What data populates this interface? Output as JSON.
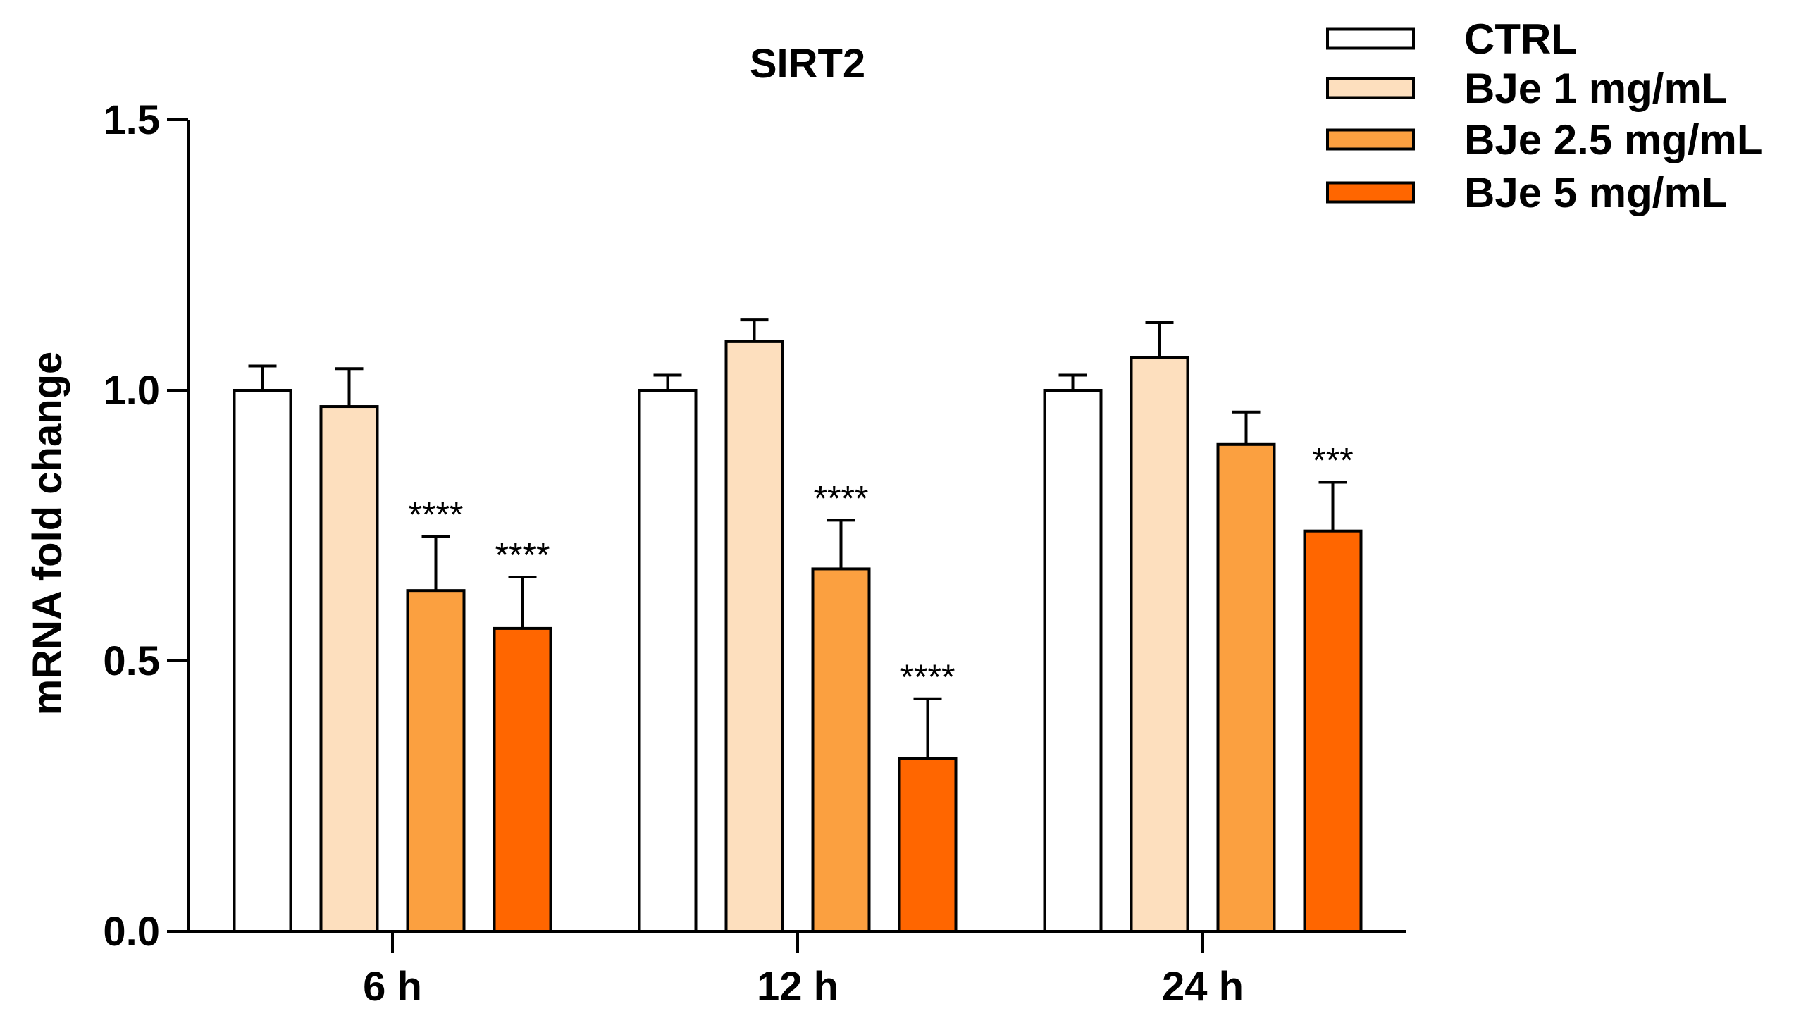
{
  "chart_data": {
    "type": "bar",
    "title": "SIRT2",
    "xlabel": "",
    "ylabel": "mRNA fold change",
    "ylim": [
      0,
      1.5
    ],
    "yticks": [
      0.0,
      0.5,
      1.0,
      1.5
    ],
    "ytick_labels": [
      "0.0",
      "0.5",
      "1.0",
      "1.5"
    ],
    "categories": [
      "6 h",
      "12 h",
      "24 h"
    ],
    "legend_position": "top-right",
    "series": [
      {
        "name": "CTRL",
        "color": "#FFFFFF",
        "values": [
          1.0,
          1.0,
          1.0
        ],
        "errors": [
          0.045,
          0.028,
          0.028
        ],
        "significance": [
          "",
          "",
          ""
        ]
      },
      {
        "name": "BJe 1 mg/mL",
        "color": "#FDDFBE",
        "values": [
          0.97,
          1.09,
          1.06
        ],
        "errors": [
          0.07,
          0.04,
          0.065
        ],
        "significance": [
          "",
          "",
          ""
        ]
      },
      {
        "name": "BJe 2.5 mg/mL",
        "color": "#FBA040",
        "values": [
          0.63,
          0.67,
          0.9
        ],
        "errors": [
          0.1,
          0.09,
          0.06
        ],
        "significance": [
          "****",
          "****",
          ""
        ]
      },
      {
        "name": "BJe 5 mg/mL",
        "color": "#FF6600",
        "values": [
          0.56,
          0.32,
          0.74
        ],
        "errors": [
          0.095,
          0.11,
          0.09
        ],
        "significance": [
          "****",
          "****",
          "***"
        ]
      }
    ]
  }
}
